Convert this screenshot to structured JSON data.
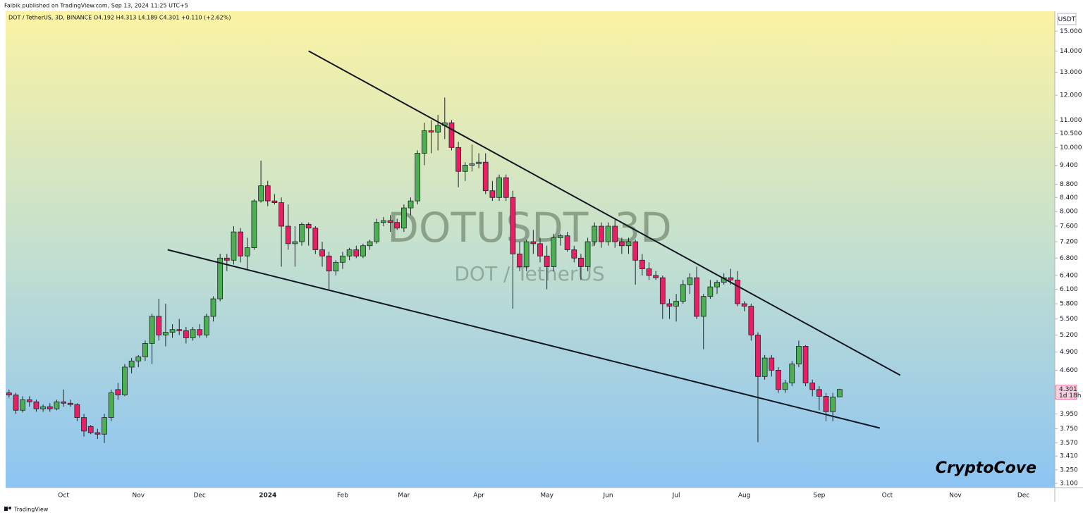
{
  "header": {
    "publisher": "Faibik published on TradingView.com, Sep 13, 2024 11:25 UTC+5",
    "footer": "TradingView"
  },
  "chart_data": {
    "type": "candlestick",
    "symbol_line": "DOT / TetherUS, 3D, BINANCE  O4.192  H4.313  L4.189  C4.301  +0.110 (+2.62%)",
    "watermark": "DOTUSDT, 3D",
    "watermark_sub": "DOT / TetherUS",
    "signature": "CryptoCove",
    "currency": "USDT",
    "countdown": "1d 18h",
    "last_price": 4.301,
    "up_color": "#4caf50",
    "down_color": "#e91e63",
    "log_scale": true,
    "ylim": [
      3.07,
      16.0
    ],
    "yticks": [
      {
        "value": 3.1,
        "label": "3.100"
      },
      {
        "value": 3.25,
        "label": "3.250"
      },
      {
        "value": 3.41,
        "label": "3.410"
      },
      {
        "value": 3.57,
        "label": "3.570"
      },
      {
        "value": 3.75,
        "label": "3.750"
      },
      {
        "value": 3.95,
        "label": "3.950"
      },
      {
        "value": 4.6,
        "label": "4.600"
      },
      {
        "value": 4.9,
        "label": "4.900"
      },
      {
        "value": 5.2,
        "label": "5.200"
      },
      {
        "value": 5.5,
        "label": "5.500"
      },
      {
        "value": 5.8,
        "label": "5.800"
      },
      {
        "value": 6.1,
        "label": "6.100"
      },
      {
        "value": 6.4,
        "label": "6.400"
      },
      {
        "value": 6.8,
        "label": "6.800"
      },
      {
        "value": 7.2,
        "label": "7.200"
      },
      {
        "value": 7.6,
        "label": "7.600"
      },
      {
        "value": 8.0,
        "label": "8.000"
      },
      {
        "value": 8.4,
        "label": "8.400"
      },
      {
        "value": 8.8,
        "label": "8.800"
      },
      {
        "value": 9.4,
        "label": "9.400"
      },
      {
        "value": 10.0,
        "label": "10.000"
      },
      {
        "value": 10.5,
        "label": "10.500"
      },
      {
        "value": 11.0,
        "label": "11.000"
      },
      {
        "value": 12.0,
        "label": "12.000"
      },
      {
        "value": 13.0,
        "label": "13.000"
      },
      {
        "value": 14.0,
        "label": "14.000"
      },
      {
        "value": 15.0,
        "label": "15.000"
      }
    ],
    "categories": [
      null,
      null,
      null,
      null,
      null,
      null,
      null,
      null,
      "Oct",
      null,
      null,
      null,
      null,
      null,
      null,
      null,
      null,
      null,
      null,
      "Nov",
      null,
      null,
      null,
      null,
      null,
      null,
      null,
      null,
      "Dec",
      null,
      null,
      null,
      null,
      null,
      null,
      null,
      null,
      null,
      "2024",
      null,
      null,
      null,
      null,
      null,
      null,
      null,
      null,
      null,
      null,
      "Feb",
      null,
      null,
      null,
      null,
      null,
      null,
      null,
      null,
      "Mar",
      null,
      null,
      null,
      null,
      null,
      null,
      null,
      null,
      null,
      null,
      "Apr",
      null,
      null,
      null,
      null,
      null,
      null,
      null,
      null,
      null,
      "May",
      null,
      null,
      null,
      null,
      null,
      null,
      null,
      null,
      "Jun",
      null,
      null,
      null,
      null,
      null,
      null,
      null,
      null,
      null,
      "Jul",
      null,
      null,
      null,
      null,
      null,
      null,
      null,
      null,
      null,
      "Aug",
      null,
      null,
      null,
      null,
      null,
      null,
      null,
      null,
      null,
      null,
      "Sep",
      null,
      null,
      null,
      null,
      null,
      null,
      null,
      null,
      null,
      "Oct",
      null,
      null,
      null,
      null,
      null,
      null,
      null,
      null,
      null,
      "Nov",
      null,
      null,
      null,
      null,
      null,
      null,
      null,
      null,
      null,
      "Dec",
      null,
      null,
      null,
      null
    ],
    "ohlc": [
      [
        4.25,
        4.3,
        4.18,
        4.22
      ],
      [
        4.22,
        4.25,
        3.95,
        4.0
      ],
      [
        4.0,
        4.2,
        3.97,
        4.15
      ],
      [
        4.15,
        4.2,
        4.05,
        4.12
      ],
      [
        4.12,
        4.15,
        3.98,
        4.02
      ],
      [
        4.02,
        4.08,
        3.98,
        4.05
      ],
      [
        4.05,
        4.1,
        3.98,
        4.02
      ],
      [
        4.02,
        4.15,
        4.0,
        4.12
      ],
      [
        4.12,
        4.3,
        4.05,
        4.1
      ],
      [
        4.1,
        4.15,
        4.05,
        4.08
      ],
      [
        4.08,
        4.1,
        3.85,
        3.9
      ],
      [
        3.9,
        3.95,
        3.65,
        3.72
      ],
      [
        3.78,
        3.8,
        3.68,
        3.7
      ],
      [
        3.7,
        3.75,
        3.62,
        3.68
      ],
      [
        3.68,
        3.95,
        3.57,
        3.9
      ],
      [
        3.9,
        4.3,
        3.85,
        4.25
      ],
      [
        4.3,
        4.4,
        4.15,
        4.22
      ],
      [
        4.22,
        4.7,
        4.2,
        4.65
      ],
      [
        4.65,
        4.8,
        4.55,
        4.75
      ],
      [
        4.75,
        4.85,
        4.65,
        4.82
      ],
      [
        4.82,
        5.1,
        4.75,
        5.05
      ],
      [
        5.05,
        5.6,
        4.7,
        5.55
      ],
      [
        5.55,
        5.9,
        5.1,
        5.2
      ],
      [
        5.2,
        5.8,
        5.0,
        5.25
      ],
      [
        5.25,
        5.4,
        5.15,
        5.3
      ],
      [
        5.3,
        5.5,
        5.2,
        5.28
      ],
      [
        5.28,
        5.35,
        5.05,
        5.15
      ],
      [
        5.15,
        5.35,
        5.1,
        5.3
      ],
      [
        5.3,
        5.4,
        5.15,
        5.2
      ],
      [
        5.2,
        5.6,
        5.15,
        5.55
      ],
      [
        5.55,
        5.95,
        5.45,
        5.9
      ],
      [
        5.9,
        6.9,
        5.85,
        6.8
      ],
      [
        6.8,
        6.9,
        6.5,
        6.75
      ],
      [
        6.75,
        7.6,
        6.65,
        7.45
      ],
      [
        7.45,
        7.55,
        6.7,
        6.85
      ],
      [
        6.85,
        7.3,
        6.55,
        7.05
      ],
      [
        7.05,
        8.35,
        7.0,
        8.3
      ],
      [
        8.3,
        9.55,
        8.25,
        8.75
      ],
      [
        8.75,
        8.9,
        8.15,
        8.3
      ],
      [
        8.3,
        8.5,
        8.2,
        8.25
      ],
      [
        8.25,
        8.4,
        6.6,
        7.6
      ],
      [
        7.6,
        8.2,
        7.0,
        7.15
      ],
      [
        7.15,
        7.6,
        6.6,
        7.2
      ],
      [
        7.2,
        7.7,
        7.1,
        7.65
      ],
      [
        7.65,
        7.7,
        7.1,
        7.55
      ],
      [
        7.55,
        7.6,
        6.9,
        7.0
      ],
      [
        7.0,
        7.2,
        6.6,
        6.85
      ],
      [
        6.85,
        6.95,
        6.1,
        6.5
      ],
      [
        6.5,
        6.75,
        6.4,
        6.7
      ],
      [
        6.7,
        6.95,
        6.55,
        6.85
      ],
      [
        6.85,
        7.05,
        6.75,
        7.0
      ],
      [
        7.0,
        7.1,
        6.8,
        6.85
      ],
      [
        6.85,
        7.15,
        6.8,
        7.1
      ],
      [
        7.1,
        7.25,
        7.0,
        7.2
      ],
      [
        7.2,
        7.8,
        7.15,
        7.7
      ],
      [
        7.7,
        7.85,
        7.6,
        7.75
      ],
      [
        7.75,
        7.9,
        7.45,
        7.7
      ],
      [
        7.7,
        7.8,
        7.5,
        7.55
      ],
      [
        7.55,
        8.2,
        7.45,
        8.1
      ],
      [
        8.1,
        8.4,
        7.9,
        8.3
      ],
      [
        8.3,
        9.9,
        8.2,
        9.8
      ],
      [
        9.8,
        10.9,
        9.4,
        10.6
      ],
      [
        10.6,
        11.0,
        9.8,
        10.55
      ],
      [
        10.55,
        11.2,
        9.9,
        10.8
      ],
      [
        10.8,
        11.9,
        10.3,
        10.9
      ],
      [
        10.9,
        11.0,
        9.9,
        10.0
      ],
      [
        10.0,
        10.2,
        8.7,
        9.2
      ],
      [
        9.2,
        9.5,
        8.9,
        9.4
      ],
      [
        9.4,
        10.1,
        9.2,
        9.45
      ],
      [
        9.45,
        9.8,
        9.3,
        9.5
      ],
      [
        9.5,
        9.8,
        8.5,
        8.6
      ],
      [
        8.6,
        8.9,
        8.3,
        8.4
      ],
      [
        8.4,
        9.1,
        8.3,
        9.0
      ],
      [
        9.0,
        9.1,
        8.3,
        8.4
      ],
      [
        8.4,
        8.6,
        5.7,
        6.9
      ],
      [
        6.9,
        7.2,
        6.5,
        6.6
      ],
      [
        6.6,
        7.25,
        6.5,
        7.2
      ],
      [
        7.2,
        7.5,
        6.9,
        7.15
      ],
      [
        7.15,
        7.3,
        6.7,
        6.85
      ],
      [
        6.85,
        7.1,
        6.1,
        6.6
      ],
      [
        6.6,
        7.4,
        6.5,
        7.3
      ],
      [
        7.3,
        7.4,
        7.1,
        7.35
      ],
      [
        7.35,
        7.45,
        6.95,
        7.0
      ],
      [
        7.0,
        7.1,
        6.7,
        6.8
      ],
      [
        6.8,
        6.9,
        6.3,
        6.6
      ],
      [
        6.6,
        7.3,
        6.5,
        7.2
      ],
      [
        7.2,
        7.7,
        7.1,
        7.6
      ],
      [
        7.6,
        7.7,
        7.05,
        7.2
      ],
      [
        7.2,
        7.7,
        7.1,
        7.6
      ],
      [
        7.6,
        7.8,
        7.05,
        7.2
      ],
      [
        7.2,
        7.3,
        6.9,
        7.1
      ],
      [
        7.1,
        7.3,
        6.9,
        7.2
      ],
      [
        7.2,
        7.25,
        6.2,
        6.75
      ],
      [
        6.75,
        6.9,
        6.4,
        6.55
      ],
      [
        6.55,
        6.7,
        6.3,
        6.4
      ],
      [
        6.4,
        6.5,
        6.3,
        6.35
      ],
      [
        6.35,
        6.4,
        5.5,
        5.8
      ],
      [
        5.8,
        5.9,
        5.5,
        5.75
      ],
      [
        5.75,
        6.0,
        5.45,
        5.85
      ],
      [
        5.85,
        6.3,
        5.8,
        6.2
      ],
      [
        6.2,
        6.45,
        6.0,
        6.35
      ],
      [
        6.35,
        6.6,
        5.5,
        5.55
      ],
      [
        5.55,
        6.0,
        4.95,
        5.95
      ],
      [
        5.95,
        6.3,
        5.9,
        6.15
      ],
      [
        6.15,
        6.3,
        6.0,
        6.25
      ],
      [
        6.25,
        6.45,
        6.2,
        6.35
      ],
      [
        6.35,
        6.55,
        6.2,
        6.3
      ],
      [
        6.3,
        6.5,
        5.75,
        5.8
      ],
      [
        5.8,
        5.85,
        5.65,
        5.75
      ],
      [
        5.75,
        5.8,
        5.1,
        5.2
      ],
      [
        5.2,
        5.25,
        3.58,
        4.5
      ],
      [
        4.5,
        4.85,
        4.45,
        4.8
      ],
      [
        4.8,
        4.85,
        4.5,
        4.6
      ],
      [
        4.6,
        4.65,
        4.25,
        4.3
      ],
      [
        4.3,
        4.45,
        4.25,
        4.4
      ],
      [
        4.4,
        4.75,
        4.35,
        4.7
      ],
      [
        4.7,
        5.1,
        4.65,
        5.0
      ],
      [
        5.0,
        5.02,
        4.35,
        4.4
      ],
      [
        4.4,
        4.45,
        4.2,
        4.3
      ],
      [
        4.3,
        4.35,
        4.0,
        4.2
      ],
      [
        4.2,
        4.25,
        3.85,
        3.98
      ],
      [
        3.98,
        4.25,
        3.85,
        4.19
      ],
      [
        4.192,
        4.313,
        4.189,
        4.301
      ],
      null,
      null,
      null,
      null,
      null,
      null,
      null,
      null,
      null,
      null,
      null,
      null,
      null,
      null,
      null,
      null,
      null,
      null,
      null,
      null,
      null,
      null,
      null,
      null,
      null,
      null,
      null,
      null,
      null,
      null,
      null
    ],
    "trendlines": [
      {
        "x": [
          44.0,
          130.9
        ],
        "y": [
          14.0,
          4.52
        ]
      },
      {
        "x": [
          23.3,
          127.9
        ],
        "y": [
          7.0,
          3.76
        ]
      }
    ]
  }
}
